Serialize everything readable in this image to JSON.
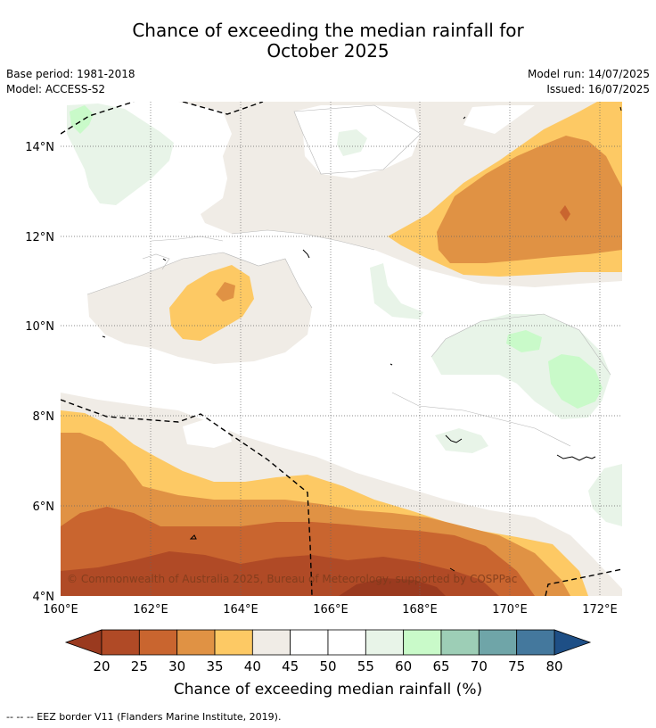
{
  "header": {
    "title_line1": "Chance of exceeding the median rainfall for",
    "title_line2": "October 2025",
    "base_period": "Base period: 1981-2018",
    "model": "Model: ACCESS-S2",
    "model_run": "Model run: 14/07/2025",
    "issued": "Issued: 16/07/2025"
  },
  "map": {
    "lon_ticks": [
      "160°E",
      "162°E",
      "164°E",
      "166°E",
      "168°E",
      "170°E",
      "172°E"
    ],
    "lat_ticks": [
      "14°N",
      "12°N",
      "10°N",
      "8°N",
      "6°N",
      "4°N"
    ],
    "lon_range": [
      160,
      172.5
    ],
    "lat_range": [
      4,
      15
    ],
    "grid": true,
    "copyright": "© Commonwealth of Australia 2025, Bureau of Meteorology, supported by COSPPac"
  },
  "colorbar": {
    "ticks": [
      "20",
      "25",
      "30",
      "35",
      "40",
      "45",
      "50",
      "55",
      "60",
      "65",
      "70",
      "75",
      "80"
    ],
    "colors": [
      "#b04a26",
      "#c9652f",
      "#e09244",
      "#fdc964",
      "#f0ece6",
      "#ffffff",
      "#ffffff",
      "#e8f4e8",
      "#c9fac9",
      "#9dceb6",
      "#6fa5a8",
      "#44789d"
    ],
    "low_extend_color": "#9a3a1f",
    "high_extend_color": "#1e4f86",
    "label": "Chance of exceeding median rainfall (%)"
  },
  "footnote": "--  --  -- EEZ border V11 (Flanders Marine Institute, 2019)."
}
